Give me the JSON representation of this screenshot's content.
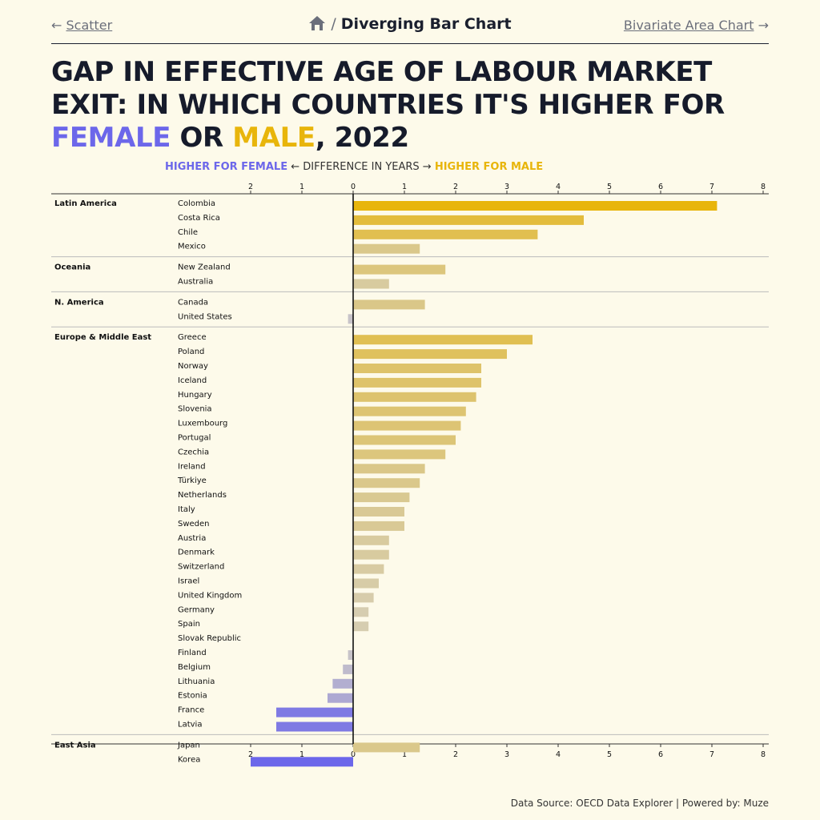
{
  "nav": {
    "prev_arrow": "←",
    "prev_label": "Scatter",
    "current": "Diverging Bar Chart",
    "separator": "/",
    "next_label": "Bivariate Area Chart",
    "next_arrow": "→"
  },
  "title": {
    "part1": "Gap in effective age of labour market exit: in which countries it's higher for ",
    "female": "Female",
    "or": " or ",
    "male": "Male",
    "end": ", 2022"
  },
  "subtitle": {
    "female": "HIGHER FOR FEMALE",
    "middle": " ← DIFFERENCE IN YEARS → ",
    "male": "HIGHER FOR MALE"
  },
  "footer": "Data Source: OECD Data Explorer | Powered by: Muze",
  "colors": {
    "female": "#6c67ea",
    "male": "#e8b50b",
    "background": "#fdfaea"
  },
  "chart_data": {
    "type": "bar",
    "orientation": "horizontal",
    "xlim": [
      -2,
      8
    ],
    "ticks": [
      "2",
      "1",
      "0",
      "1",
      "2",
      "3",
      "4",
      "5",
      "6",
      "7",
      "8"
    ],
    "groups": [
      {
        "name": "Latin America",
        "countries": [
          {
            "name": "Colombia",
            "value": 7.1
          },
          {
            "name": "Costa Rica",
            "value": 4.5
          },
          {
            "name": "Chile",
            "value": 3.6
          },
          {
            "name": "Mexico",
            "value": 1.3
          }
        ]
      },
      {
        "name": "Oceania",
        "countries": [
          {
            "name": "New Zealand",
            "value": 1.8
          },
          {
            "name": "Australia",
            "value": 0.7
          }
        ]
      },
      {
        "name": "N. America",
        "countries": [
          {
            "name": "Canada",
            "value": 1.4
          },
          {
            "name": "United States",
            "value": -0.1
          }
        ]
      },
      {
        "name": "Europe & Middle East",
        "countries": [
          {
            "name": "Greece",
            "value": 3.5
          },
          {
            "name": "Poland",
            "value": 3.0
          },
          {
            "name": "Norway",
            "value": 2.5
          },
          {
            "name": "Iceland",
            "value": 2.5
          },
          {
            "name": "Hungary",
            "value": 2.4
          },
          {
            "name": "Slovenia",
            "value": 2.2
          },
          {
            "name": "Luxembourg",
            "value": 2.1
          },
          {
            "name": "Portugal",
            "value": 2.0
          },
          {
            "name": "Czechia",
            "value": 1.8
          },
          {
            "name": "Ireland",
            "value": 1.4
          },
          {
            "name": "Türkiye",
            "value": 1.3
          },
          {
            "name": "Netherlands",
            "value": 1.1
          },
          {
            "name": "Italy",
            "value": 1.0
          },
          {
            "name": "Sweden",
            "value": 1.0
          },
          {
            "name": "Austria",
            "value": 0.7
          },
          {
            "name": "Denmark",
            "value": 0.7
          },
          {
            "name": "Switzerland",
            "value": 0.6
          },
          {
            "name": "Israel",
            "value": 0.5
          },
          {
            "name": "United Kingdom",
            "value": 0.4
          },
          {
            "name": "Germany",
            "value": 0.3
          },
          {
            "name": "Spain",
            "value": 0.3
          },
          {
            "name": "Slovak Republic",
            "value": 0.0
          },
          {
            "name": "Finland",
            "value": -0.1
          },
          {
            "name": "Belgium",
            "value": -0.2
          },
          {
            "name": "Lithuania",
            "value": -0.4
          },
          {
            "name": "Estonia",
            "value": -0.5
          },
          {
            "name": "France",
            "value": -1.5
          },
          {
            "name": "Latvia",
            "value": -1.5
          }
        ]
      },
      {
        "name": "East Asia",
        "countries": [
          {
            "name": "Japan",
            "value": 1.3
          },
          {
            "name": "Korea",
            "value": -2.0
          }
        ]
      }
    ]
  }
}
